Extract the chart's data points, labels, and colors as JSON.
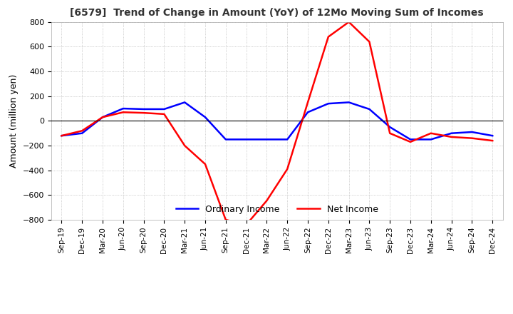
{
  "title": "[6579]  Trend of Change in Amount (YoY) of 12Mo Moving Sum of Incomes",
  "ylabel": "Amount (million yen)",
  "ylim": [
    -800,
    800
  ],
  "yticks": [
    -800,
    -600,
    -400,
    -200,
    0,
    200,
    400,
    600,
    800
  ],
  "x_labels": [
    "Sep-19",
    "Dec-19",
    "Mar-20",
    "Jun-20",
    "Sep-20",
    "Dec-20",
    "Mar-21",
    "Jun-21",
    "Sep-21",
    "Dec-21",
    "Mar-22",
    "Jun-22",
    "Sep-22",
    "Dec-22",
    "Mar-23",
    "Jun-23",
    "Sep-23",
    "Dec-23",
    "Mar-24",
    "Jun-24",
    "Sep-24",
    "Dec-24"
  ],
  "ordinary_income": [
    -120,
    -100,
    30,
    100,
    95,
    95,
    150,
    30,
    -150,
    -150,
    -150,
    -150,
    70,
    140,
    150,
    95,
    -50,
    -150,
    -150,
    -100,
    -90,
    -120
  ],
  "net_income": [
    -120,
    -80,
    30,
    70,
    65,
    55,
    -200,
    -350,
    -800,
    -840,
    -645,
    -390,
    150,
    680,
    800,
    640,
    -100,
    -170,
    -100,
    -130,
    -140,
    -160
  ],
  "ordinary_color": "#0000ff",
  "net_color": "#ff0000",
  "grid_color": "#aaaaaa",
  "background_color": "#ffffff",
  "title_color": "#333333",
  "legend_ordinary": "Ordinary Income",
  "legend_net": "Net Income",
  "line_width": 1.8
}
